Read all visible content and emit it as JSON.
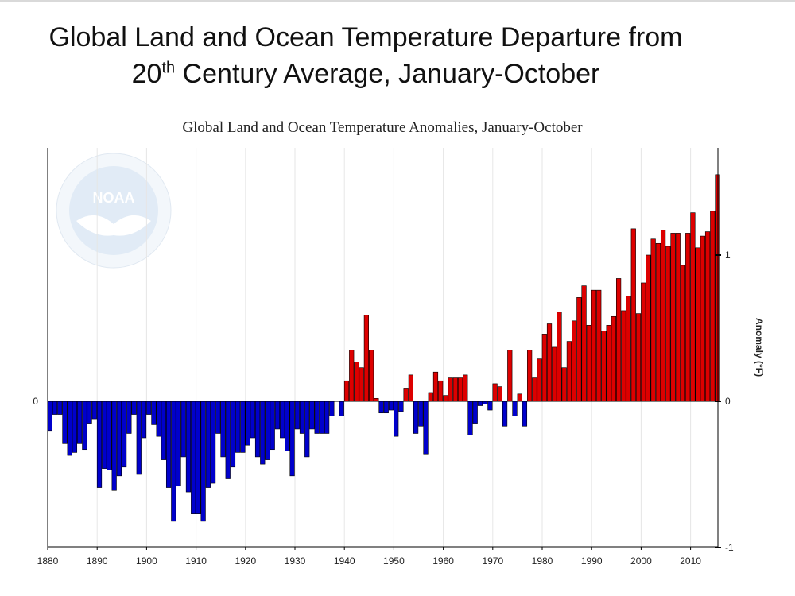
{
  "slide": {
    "title_line1": "Global Land and Ocean Temperature Departure from",
    "title_line2_a": "20",
    "title_line2_sup": "th",
    "title_line2_b": " Century Average, January-October"
  },
  "logo": {
    "text": "NOAA",
    "ring_text": "NATIONAL OCEANIC AND ATMOSPHERIC ADMINISTRATION · U.S. DEPARTMENT OF COMMERCE"
  },
  "colors": {
    "positive": "#dd0000",
    "negative": "#0000cc",
    "bar_stroke": "#000000"
  },
  "chart_data": {
    "type": "bar",
    "title": "Global Land and Ocean Temperature Anomalies, January-October",
    "ylabel": "Anomaly (°F)",
    "xlabel": "",
    "ylim": [
      -1,
      1.55
    ],
    "left_axis_ticks": [
      {
        "value": 0,
        "label": "0"
      }
    ],
    "right_axis_ticks": [
      {
        "value": 1,
        "label": "1"
      },
      {
        "value": 0,
        "label": "0"
      },
      {
        "value": -1,
        "label": "-1"
      }
    ],
    "x_ticks": [
      "1880",
      "1890",
      "1900",
      "1910",
      "1920",
      "1930",
      "1940",
      "1950",
      "1960",
      "1970",
      "1980",
      "1990",
      "2000",
      "2010"
    ],
    "grid": true,
    "legend": "none",
    "start_year": 1880,
    "values": [
      -0.2,
      -0.09,
      -0.09,
      -0.29,
      -0.37,
      -0.35,
      -0.29,
      -0.33,
      -0.15,
      -0.12,
      -0.59,
      -0.46,
      -0.47,
      -0.61,
      -0.51,
      -0.45,
      -0.22,
      -0.09,
      -0.5,
      -0.25,
      -0.09,
      -0.16,
      -0.24,
      -0.4,
      -0.59,
      -0.82,
      -0.58,
      -0.38,
      -0.62,
      -0.77,
      -0.77,
      -0.82,
      -0.59,
      -0.56,
      -0.22,
      -0.38,
      -0.53,
      -0.45,
      -0.35,
      -0.35,
      -0.3,
      -0.25,
      -0.38,
      -0.43,
      -0.4,
      -0.33,
      -0.19,
      -0.25,
      -0.34,
      -0.51,
      -0.19,
      -0.22,
      -0.38,
      -0.19,
      -0.22,
      -0.22,
      -0.22,
      -0.1,
      0.0,
      -0.1,
      0.14,
      0.35,
      0.27,
      0.23,
      0.59,
      0.35,
      0.02,
      -0.08,
      -0.08,
      -0.06,
      -0.24,
      -0.07,
      0.09,
      0.18,
      -0.22,
      -0.17,
      -0.36,
      0.06,
      0.2,
      0.14,
      0.04,
      0.16,
      0.16,
      0.16,
      0.18,
      -0.23,
      -0.15,
      -0.03,
      -0.02,
      -0.06,
      0.12,
      0.1,
      -0.17,
      0.35,
      -0.1,
      0.05,
      -0.17,
      0.35,
      0.16,
      0.29,
      0.46,
      0.53,
      0.37,
      0.61,
      0.23,
      0.41,
      0.55,
      0.71,
      0.79,
      0.52,
      0.76,
      0.76,
      0.48,
      0.52,
      0.58,
      0.84,
      0.62,
      0.72,
      1.18,
      0.6,
      0.81,
      1.0,
      1.11,
      1.08,
      1.17,
      1.06,
      1.15,
      1.15,
      0.93,
      1.15,
      1.29,
      1.05,
      1.13,
      1.16,
      1.3,
      1.55
    ]
  }
}
